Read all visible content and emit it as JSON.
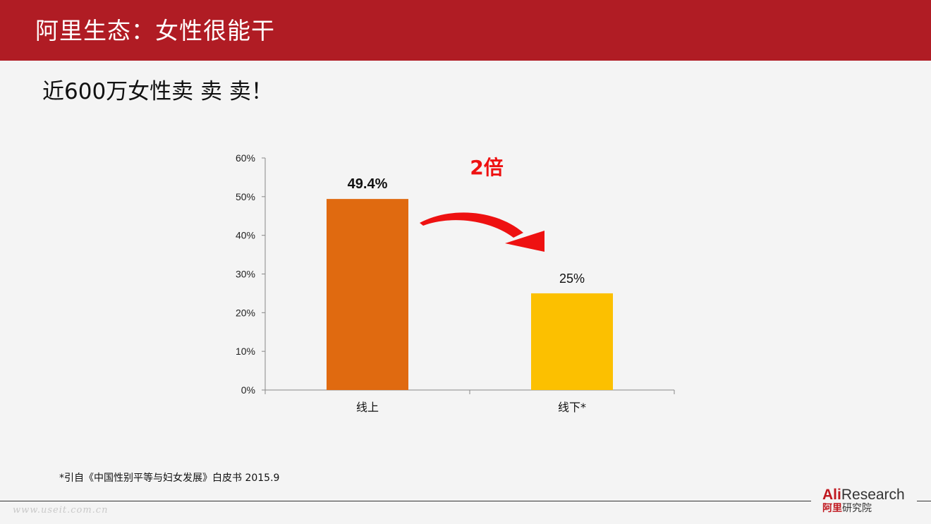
{
  "header": {
    "title": "阿里生态：女性很能干"
  },
  "subtitle": "近600万女性卖  卖  卖！",
  "annotation": {
    "multiplier": "2倍",
    "arrow_color": "#ee1111"
  },
  "chart_data": {
    "type": "bar",
    "categories": [
      "线上",
      "线下*"
    ],
    "values": [
      49.4,
      25
    ],
    "value_labels": [
      "49.4%",
      "25%"
    ],
    "bar_colors": [
      "#e06a10",
      "#fcc000"
    ],
    "ylim": [
      0,
      60
    ],
    "yticks": [
      0,
      10,
      20,
      30,
      40,
      50,
      60
    ],
    "ytick_labels": [
      "0%",
      "10%",
      "20%",
      "30%",
      "40%",
      "50%",
      "60%"
    ],
    "xlabel": "",
    "ylabel": "",
    "grid": false
  },
  "footnote": "*引自《中国性别平等与妇女发展》白皮书 2015.9",
  "watermark": "www.useit.com.cn",
  "logo": {
    "ali": "Ali",
    "research": "Research",
    "cn_red": "阿里",
    "cn_rest": "研究院",
    "brand_color": "#c0181f"
  },
  "colors": {
    "header_bg": "#b01c24",
    "page_bg": "#f4f4f4"
  }
}
